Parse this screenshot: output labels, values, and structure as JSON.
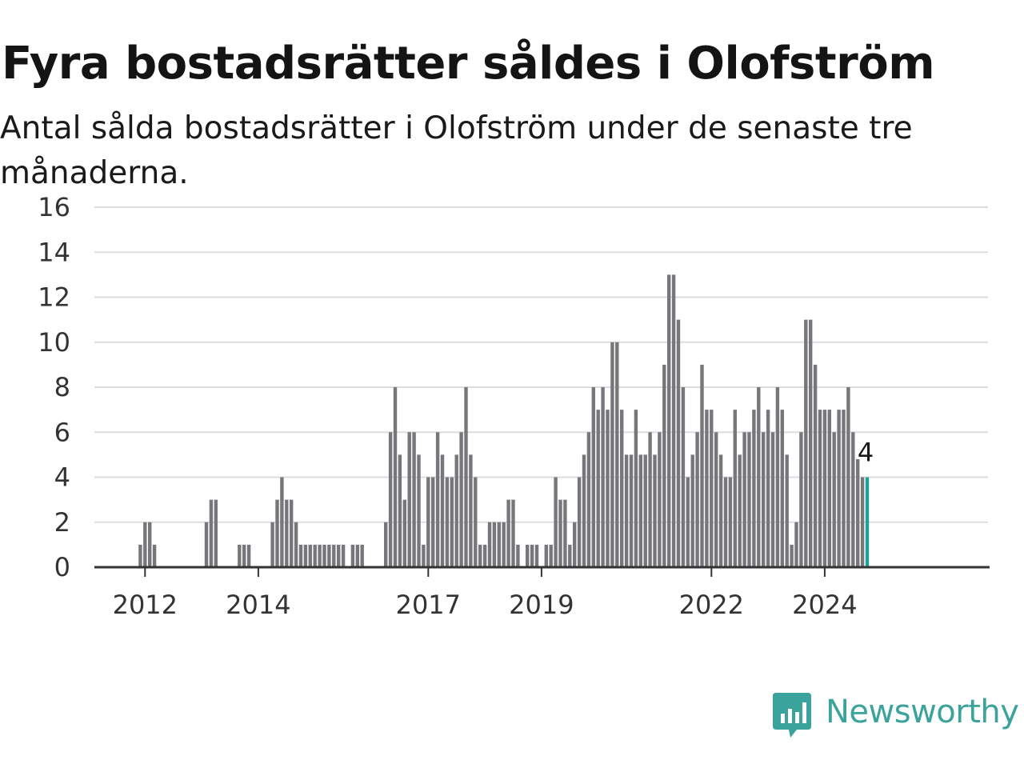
{
  "title": "Fyra bostadsrätter såldes i Olofström",
  "subtitle": "Antal sålda bostadsrätter i Olofström under de senaste tre månaderna.",
  "logo_text": "Newsworthy",
  "colors": {
    "bar": "#77767b",
    "highlight": "#1aa39b",
    "grid": "#dddddd",
    "axis": "#333333",
    "brand": "#3aa39b"
  },
  "chart_data": {
    "type": "bar",
    "title": "Fyra bostadsrätter såldes i Olofström",
    "subtitle": "Antal sålda bostadsrätter i Olofström under de senaste tre månaderna.",
    "xlabel": "",
    "ylabel": "",
    "ylim": [
      0,
      16
    ],
    "yticks": [
      0,
      2,
      4,
      6,
      8,
      10,
      12,
      14,
      16
    ],
    "xticks": [
      "2012",
      "2014",
      "2017",
      "2019",
      "2022",
      "2024"
    ],
    "grid": true,
    "highlight_last": true,
    "last_value_label": "4",
    "start": "2011-03",
    "frequency": "monthly",
    "values": [
      0,
      0,
      0,
      0,
      0,
      0,
      0,
      0,
      0,
      1,
      2,
      2,
      1,
      0,
      0,
      0,
      0,
      0,
      0,
      0,
      0,
      0,
      0,
      2,
      3,
      3,
      0,
      0,
      0,
      0,
      1,
      1,
      1,
      0,
      0,
      0,
      0,
      2,
      3,
      4,
      3,
      3,
      2,
      1,
      1,
      1,
      1,
      1,
      1,
      1,
      1,
      1,
      1,
      0,
      1,
      1,
      1,
      0,
      0,
      0,
      0,
      2,
      6,
      8,
      5,
      3,
      6,
      6,
      5,
      1,
      4,
      4,
      6,
      5,
      4,
      4,
      5,
      6,
      8,
      5,
      4,
      1,
      1,
      2,
      2,
      2,
      2,
      3,
      3,
      1,
      0,
      1,
      1,
      1,
      0,
      1,
      1,
      4,
      3,
      3,
      1,
      2,
      4,
      5,
      6,
      8,
      7,
      8,
      7,
      10,
      10,
      7,
      5,
      5,
      7,
      5,
      5,
      6,
      5,
      6,
      9,
      13,
      13,
      11,
      8,
      4,
      5,
      6,
      9,
      7,
      7,
      6,
      5,
      4,
      4,
      7,
      5,
      6,
      6,
      7,
      8,
      6,
      7,
      6,
      8,
      7,
      5,
      1,
      2,
      6,
      11,
      11,
      9,
      7,
      7,
      7,
      6,
      7,
      7,
      8,
      6,
      4.8,
      4,
      4
    ]
  }
}
